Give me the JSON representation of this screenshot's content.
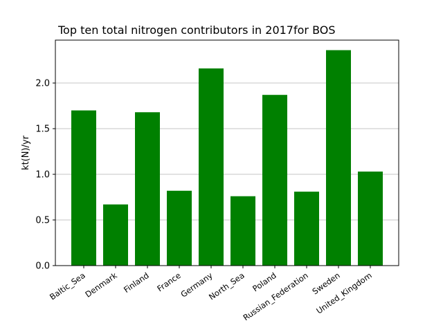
{
  "chart_data": {
    "type": "bar",
    "title": "Top ten total nitrogen contributors in 2017for  BOS",
    "xlabel": "",
    "ylabel": "kt(N)/yr",
    "categories": [
      "Baltic_Sea",
      "Denmark",
      "Finland",
      "France",
      "Germany",
      "North_Sea",
      "Poland",
      "Russian_Federation",
      "Sweden",
      "United_Kingdom"
    ],
    "values": [
      1.7,
      0.67,
      1.68,
      0.82,
      2.16,
      0.76,
      1.87,
      0.81,
      2.36,
      1.03
    ],
    "ylim": [
      0,
      2.47
    ],
    "yticks": [
      "0.0",
      "0.5",
      "1.0",
      "1.5",
      "2.0"
    ],
    "grid": "y",
    "bar_color": "#008000"
  }
}
